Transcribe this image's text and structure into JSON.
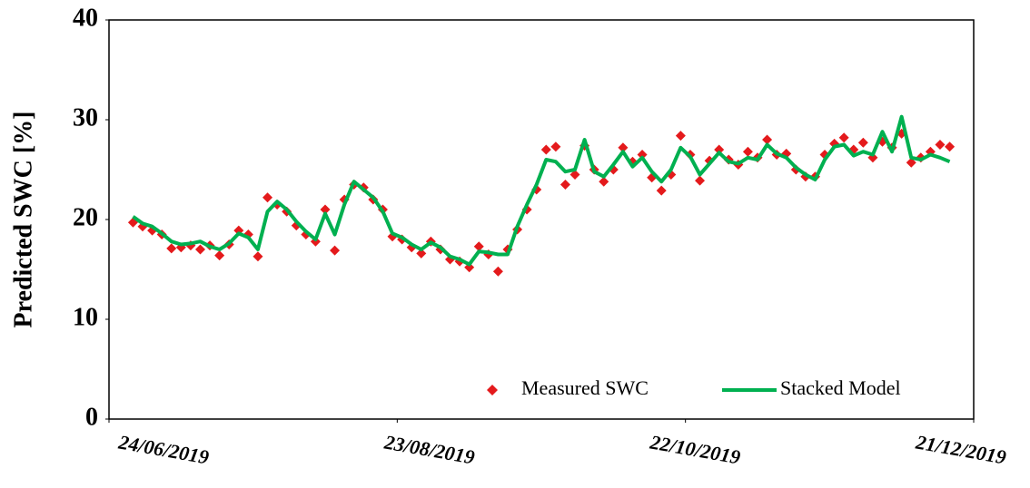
{
  "chart_data": {
    "type": "line",
    "ylabel": "Predicted SWC [%]",
    "x": [
      "29/06/2019",
      "01/07/2019",
      "03/07/2019",
      "05/07/2019",
      "07/07/2019",
      "09/07/2019",
      "11/07/2019",
      "13/07/2019",
      "15/07/2019",
      "17/07/2019",
      "19/07/2019",
      "21/07/2019",
      "23/07/2019",
      "25/07/2019",
      "27/07/2019",
      "29/07/2019",
      "31/07/2019",
      "02/08/2019",
      "04/08/2019",
      "06/08/2019",
      "08/08/2019",
      "10/08/2019",
      "12/08/2019",
      "14/08/2019",
      "16/08/2019",
      "18/08/2019",
      "20/08/2019",
      "22/08/2019",
      "24/08/2019",
      "26/08/2019",
      "28/08/2019",
      "30/08/2019",
      "01/09/2019",
      "03/09/2019",
      "05/09/2019",
      "07/09/2019",
      "09/09/2019",
      "11/09/2019",
      "13/09/2019",
      "15/09/2019",
      "17/09/2019",
      "19/09/2019",
      "21/09/2019",
      "23/09/2019",
      "25/09/2019",
      "27/09/2019",
      "29/09/2019",
      "01/10/2019",
      "03/10/2019",
      "05/10/2019",
      "07/10/2019",
      "09/10/2019",
      "11/10/2019",
      "13/10/2019",
      "15/10/2019",
      "17/10/2019",
      "19/10/2019",
      "21/10/2019",
      "23/10/2019",
      "25/10/2019",
      "27/10/2019",
      "29/10/2019",
      "31/10/2019",
      "02/11/2019",
      "04/11/2019",
      "06/11/2019",
      "08/11/2019",
      "10/11/2019",
      "12/11/2019",
      "14/11/2019",
      "16/11/2019",
      "18/11/2019",
      "20/11/2019",
      "22/11/2019",
      "24/11/2019",
      "26/11/2019",
      "28/11/2019",
      "30/11/2019",
      "02/12/2019",
      "04/12/2019",
      "06/12/2019",
      "08/12/2019",
      "10/12/2019",
      "12/12/2019",
      "14/12/2019",
      "16/12/2019"
    ],
    "series": [
      {
        "name": "Measured SWC",
        "color": "#e41a1c",
        "marker": "diamond",
        "values": [
          19.7,
          19.3,
          18.9,
          18.5,
          17.1,
          17.2,
          17.4,
          17.0,
          17.4,
          16.4,
          17.5,
          18.9,
          18.5,
          16.3,
          22.2,
          21.5,
          20.8,
          19.4,
          18.5,
          17.8,
          21.0,
          16.9,
          22.0,
          23.5,
          23.2,
          22.0,
          21.0,
          18.3,
          18.0,
          17.2,
          16.6,
          17.8,
          17.0,
          16.0,
          15.8,
          15.2,
          17.3,
          16.5,
          14.8,
          17.0,
          19.0,
          21.0,
          23.0,
          27.0,
          27.3,
          23.5,
          24.5,
          27.4,
          25.0,
          23.8,
          25.0,
          27.2,
          25.8,
          26.5,
          24.2,
          22.9,
          24.5,
          28.4,
          26.5,
          23.9,
          25.9,
          27.0,
          26.0,
          25.5,
          26.8,
          26.2,
          28.0,
          26.5,
          26.6,
          25.0,
          24.3,
          24.3,
          26.5,
          27.6,
          28.2,
          27.0,
          27.7,
          26.2,
          27.8,
          27.2,
          28.6,
          25.7,
          26.2,
          26.8,
          27.5,
          27.3
        ]
      },
      {
        "name": "Stacked Model",
        "color": "#00b050",
        "marker": "line",
        "values": [
          20.3,
          19.6,
          19.3,
          18.6,
          17.8,
          17.5,
          17.6,
          17.8,
          17.3,
          17.0,
          17.6,
          18.6,
          18.2,
          17.0,
          20.8,
          21.8,
          21.0,
          19.8,
          18.8,
          18.0,
          20.6,
          18.5,
          21.5,
          23.8,
          23.0,
          22.2,
          20.8,
          18.6,
          18.2,
          17.5,
          17.0,
          17.7,
          17.2,
          16.3,
          16.0,
          15.5,
          16.8,
          16.7,
          16.5,
          16.5,
          19.3,
          21.5,
          23.5,
          26.0,
          25.8,
          24.8,
          25.0,
          28.0,
          24.8,
          24.3,
          25.5,
          26.8,
          25.3,
          26.2,
          24.8,
          23.8,
          25.0,
          27.2,
          26.3,
          24.5,
          25.6,
          26.7,
          25.8,
          25.6,
          26.2,
          26.0,
          27.5,
          26.6,
          26.2,
          25.2,
          24.5,
          24.0,
          26.0,
          27.3,
          27.5,
          26.4,
          26.8,
          26.5,
          28.8,
          26.8,
          30.3,
          26.2,
          26.0,
          26.5,
          26.2,
          25.8
        ]
      }
    ],
    "xlim": [
      "24/06/2019",
      "21/12/2019"
    ],
    "xticks": [
      "24/06/2019",
      "23/08/2019",
      "22/10/2019",
      "21/12/2019"
    ],
    "ylim": [
      0,
      40
    ],
    "yticks": [
      0,
      10,
      20,
      30,
      40
    ],
    "grid": false,
    "legend": "lower right"
  }
}
